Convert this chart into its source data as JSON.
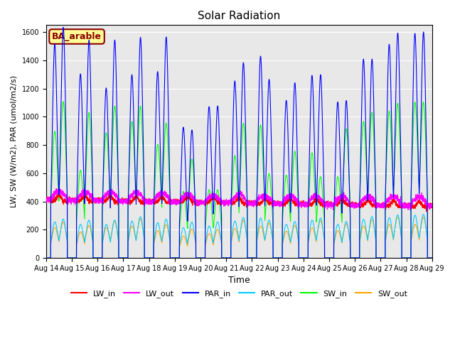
{
  "title": "Solar Radiation",
  "xlabel": "Time",
  "ylabel": "LW, SW (W/m2), PAR (umol/m2/s)",
  "ylim": [
    0,
    1650
  ],
  "yticks": [
    0,
    200,
    400,
    600,
    800,
    1000,
    1200,
    1400,
    1600
  ],
  "xtick_labels": [
    "Aug 14",
    "Aug 15",
    "Aug 16",
    "Aug 17",
    "Aug 18",
    "Aug 19",
    "Aug 20",
    "Aug 21",
    "Aug 22",
    "Aug 23",
    "Aug 24",
    "Aug 25",
    "Aug 26",
    "Aug 27",
    "Aug 28",
    "Aug 29"
  ],
  "series_colors": {
    "LW_in": "#ff0000",
    "LW_out": "#ff00ff",
    "PAR_in": "#0000ff",
    "PAR_out": "#00ccff",
    "SW_in": "#00ff00",
    "SW_out": "#ffa500"
  },
  "annotation_text": "BA_arable",
  "annotation_bg": "#ffff99",
  "annotation_border": "#8b0000",
  "background_color": "#e8e8e8",
  "n_days": 15,
  "pts_per_day": 288
}
